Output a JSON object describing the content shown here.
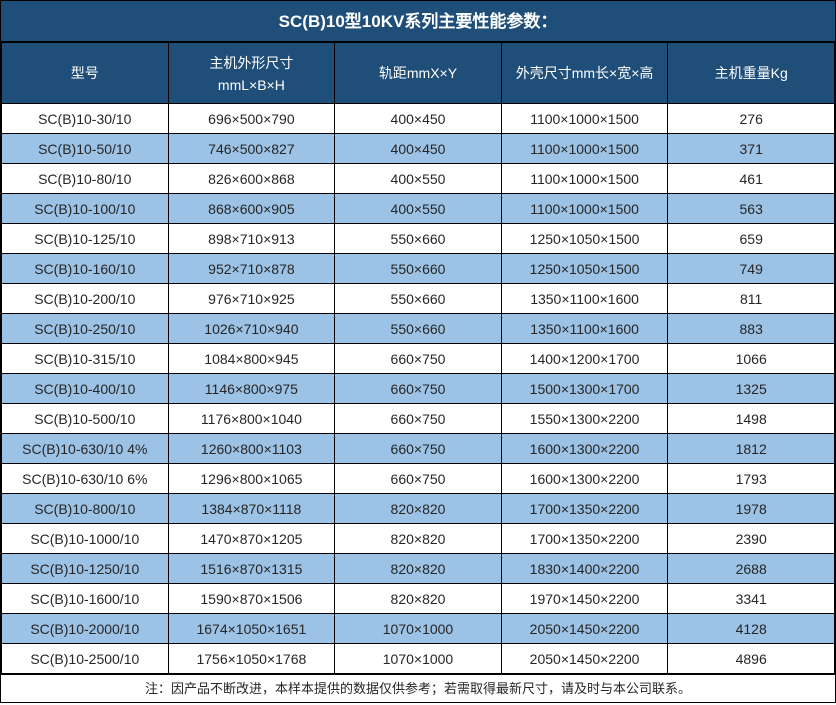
{
  "title": "SC(B)10型10KV系列主要性能参数：",
  "colors": {
    "header_bg": "#1F4E79",
    "stripe_bg": "#9CC2E5",
    "border_color": "#000000",
    "header_text": "#FFFFFF",
    "body_text": "#262626"
  },
  "table": {
    "columns": [
      {
        "label": "型号"
      },
      {
        "label": "主机外形尺寸",
        "label2": "mmL×B×H"
      },
      {
        "label": "轨距mmX×Y"
      },
      {
        "label": "外壳尺寸mm长×宽×高"
      },
      {
        "label": "主机重量Kg"
      }
    ],
    "rows": [
      [
        "SC(B)10-30/10",
        "696×500×790",
        "400×450",
        "1100×1000×1500",
        "276"
      ],
      [
        "SC(B)10-50/10",
        "746×500×827",
        "400×450",
        "1100×1000×1500",
        "371"
      ],
      [
        "SC(B)10-80/10",
        "826×600×868",
        "400×550",
        "1100×1000×1500",
        "461"
      ],
      [
        "SC(B)10-100/10",
        "868×600×905",
        "400×550",
        "1100×1000×1500",
        "563"
      ],
      [
        "SC(B)10-125/10",
        "898×710×913",
        "550×660",
        "1250×1050×1500",
        "659"
      ],
      [
        "SC(B)10-160/10",
        "952×710×878",
        "550×660",
        "1250×1050×1500",
        "749"
      ],
      [
        "SC(B)10-200/10",
        "976×710×925",
        "550×660",
        "1350×1100×1600",
        "811"
      ],
      [
        "SC(B)10-250/10",
        "1026×710×940",
        "550×660",
        "1350×1100×1600",
        "883"
      ],
      [
        "SC(B)10-315/10",
        "1084×800×945",
        "660×750",
        "1400×1200×1700",
        "1066"
      ],
      [
        "SC(B)10-400/10",
        "1146×800×975",
        "660×750",
        "1500×1300×1700",
        "1325"
      ],
      [
        "SC(B)10-500/10",
        "1176×800×1040",
        "660×750",
        "1550×1300×2200",
        "1498"
      ],
      [
        "SC(B)10-630/10 4%",
        "1260×800×1103",
        "660×750",
        "1600×1300×2200",
        "1812"
      ],
      [
        "SC(B)10-630/10 6%",
        "1296×800×1065",
        "660×750",
        "1600×1300×2200",
        "1793"
      ],
      [
        "SC(B)10-800/10",
        "1384×870×1118",
        "820×820",
        "1700×1350×2200",
        "1978"
      ],
      [
        "SC(B)10-1000/10",
        "1470×870×1205",
        "820×820",
        "1700×1350×2200",
        "2390"
      ],
      [
        "SC(B)10-1250/10",
        "1516×870×1315",
        "820×820",
        "1830×1400×2200",
        "2688"
      ],
      [
        "SC(B)10-1600/10",
        "1590×870×1506",
        "820×820",
        "1970×1450×2200",
        "3341"
      ],
      [
        "SC(B)10-2000/10",
        "1674×1050×1651",
        "1070×1000",
        "2050×1450×2200",
        "4128"
      ],
      [
        "SC(B)10-2500/10",
        "1756×1050×1768",
        "1070×1000",
        "2050×1450×2200",
        "4896"
      ]
    ]
  },
  "footer": {
    "note": "注：因产品不断改进，本样本提供的数据仅供参考；若需取得最新尺寸，请及时与本公司联系。"
  }
}
